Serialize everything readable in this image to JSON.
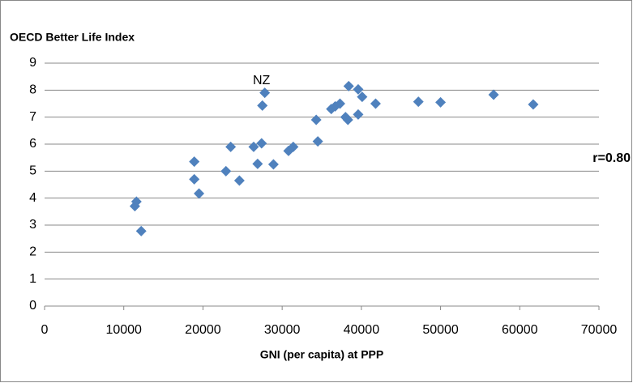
{
  "chart_data": {
    "type": "scatter",
    "title": "OECD Better Life Index",
    "x_label": "GNI (per capita) at PPP",
    "note": "r=0.80",
    "annotations": [
      {
        "text": "NZ",
        "x": 27800,
        "y": 7.9
      }
    ],
    "color": "#4f81bd",
    "x": [
      11400,
      11600,
      12200,
      18900,
      18900,
      19500,
      22900,
      23500,
      24600,
      26400,
      26900,
      27400,
      27500,
      27800,
      28900,
      30800,
      31400,
      34300,
      34500,
      36200,
      36700,
      37300,
      38000,
      38300,
      38400,
      39600,
      39600,
      40100,
      41800,
      47200,
      50000,
      56700,
      61700
    ],
    "values": [
      3.7,
      3.87,
      2.78,
      5.35,
      4.7,
      4.17,
      5.0,
      5.9,
      4.65,
      5.9,
      5.27,
      6.03,
      7.43,
      7.9,
      5.25,
      5.75,
      5.9,
      6.9,
      6.1,
      7.3,
      7.4,
      7.5,
      7.0,
      6.9,
      8.15,
      8.03,
      7.1,
      7.75,
      7.5,
      7.57,
      7.55,
      7.83,
      7.47
    ],
    "xlim": [
      0,
      70000
    ],
    "xticks": [
      0,
      10000,
      20000,
      30000,
      40000,
      50000,
      60000,
      70000
    ],
    "ylim": [
      0,
      9
    ],
    "yticks": [
      0,
      1,
      2,
      3,
      4,
      5,
      6,
      7,
      8,
      9
    ],
    "grid": true
  }
}
